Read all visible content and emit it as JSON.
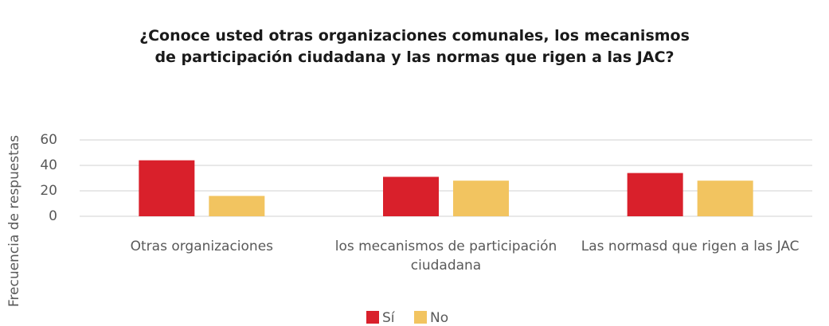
{
  "chart_data": {
    "type": "bar",
    "title": [
      "¿Conoce usted otras organizaciones comunales, los mecanismos",
      "de participación ciudadana y las normas que rigen a las JAC?"
    ],
    "y_label": "Frecuencia de respuestas",
    "categories": [
      "Otras organizaciones",
      "los mecanismos de participación ciudadana",
      "Las normasd que rigen a las JAC"
    ],
    "series": [
      {
        "name": "Sí",
        "color": "#d9202b",
        "values": [
          44,
          31,
          34
        ]
      },
      {
        "name": "No",
        "color": "#f2c460",
        "values": [
          16,
          28,
          28
        ]
      }
    ],
    "ylim": [
      0,
      60
    ],
    "yticks": [
      0,
      20,
      40,
      60
    ],
    "grid": true,
    "legend": "bottom"
  }
}
